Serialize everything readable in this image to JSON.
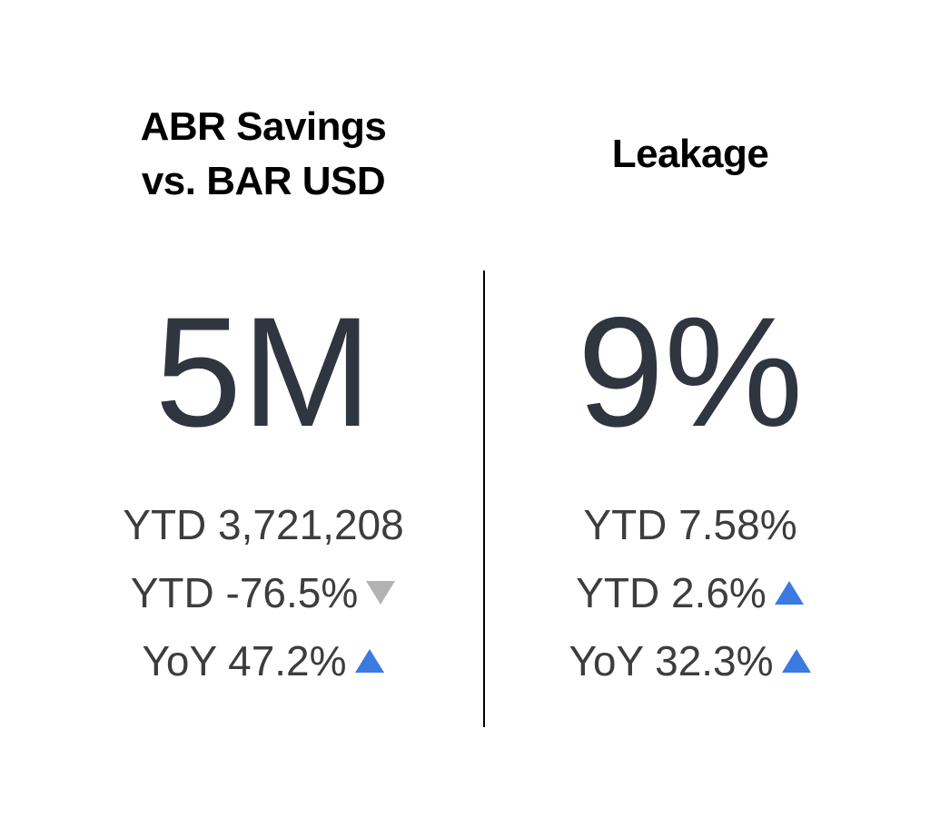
{
  "panels": [
    {
      "title_lines": [
        "ABR Savings",
        "vs. BAR USD"
      ],
      "value": "5M",
      "metrics": [
        {
          "text": "YTD 3,721,208",
          "trend": null
        },
        {
          "text": "YTD -76.5%",
          "trend": "down"
        },
        {
          "text": "YoY 47.2%",
          "trend": "up"
        }
      ]
    },
    {
      "title_lines": [
        "Leakage"
      ],
      "value": "9%",
      "metrics": [
        {
          "text": "YTD 7.58%",
          "trend": null
        },
        {
          "text": "YTD 2.6%",
          "trend": "up"
        },
        {
          "text": "YoY 32.3%",
          "trend": "up"
        }
      ]
    }
  ]
}
